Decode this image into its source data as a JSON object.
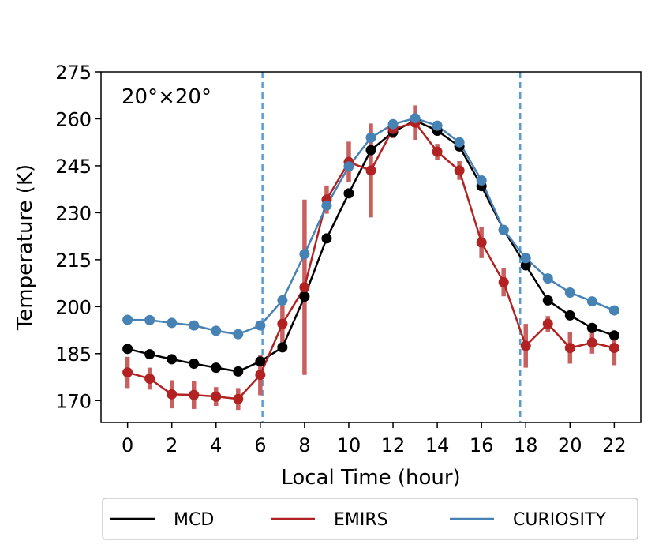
{
  "chart_data": {
    "type": "line",
    "xlabel": "Local Time (hour)",
    "ylabel": "Temperature (K)",
    "annotation": "20°×20°",
    "xlim": [
      -1.2,
      23.2
    ],
    "ylim": [
      163,
      275
    ],
    "xticks": [
      0,
      2,
      4,
      6,
      8,
      10,
      12,
      14,
      16,
      18,
      20,
      22
    ],
    "yticks": [
      170,
      185,
      200,
      215,
      230,
      245,
      260,
      275
    ],
    "vlines": [
      6.1,
      17.75
    ],
    "legend_position": "bottom-outside",
    "x": [
      0,
      1,
      2,
      3,
      4,
      5,
      6,
      7,
      8,
      9,
      10,
      11,
      12,
      13,
      14,
      15,
      16,
      17,
      18,
      19,
      20,
      21,
      22
    ],
    "series": [
      {
        "name": "MCD",
        "color": "#000000",
        "values": [
          186.5,
          184.8,
          183.2,
          181.8,
          180.5,
          179.3,
          182.5,
          187,
          203.2,
          221.8,
          236.2,
          250,
          255.8,
          259.5,
          256.2,
          251.2,
          238.5,
          224.5,
          213.2,
          202,
          197.2,
          193.2,
          190.8
        ]
      },
      {
        "name": "EMIRS",
        "color": "#b22222",
        "values": [
          179,
          177,
          172,
          171.8,
          171.3,
          170.5,
          178.2,
          194.5,
          206.2,
          234.2,
          246.2,
          243.5,
          256.8,
          258.8,
          249.5,
          243.5,
          220.5,
          207.8,
          187.5,
          194.5,
          186.8,
          188.5,
          186.8
        ],
        "errors": [
          5,
          3.5,
          4.5,
          4.5,
          3,
          3.5,
          6.5,
          6,
          28,
          4.5,
          6.5,
          15,
          3,
          5.5,
          2.5,
          3,
          5,
          4.5,
          7,
          2.5,
          5,
          3.5,
          5.5
        ]
      },
      {
        "name": "CURIOSITY",
        "color": "#4682b4",
        "values": [
          195.8,
          195.7,
          194.8,
          194,
          192.3,
          191.2,
          194,
          202,
          216.8,
          232.3,
          244.8,
          254,
          258.3,
          260.2,
          257.8,
          252.5,
          240.3,
          224.5,
          215.5,
          209,
          204.5,
          201.7,
          198.8
        ]
      }
    ]
  }
}
